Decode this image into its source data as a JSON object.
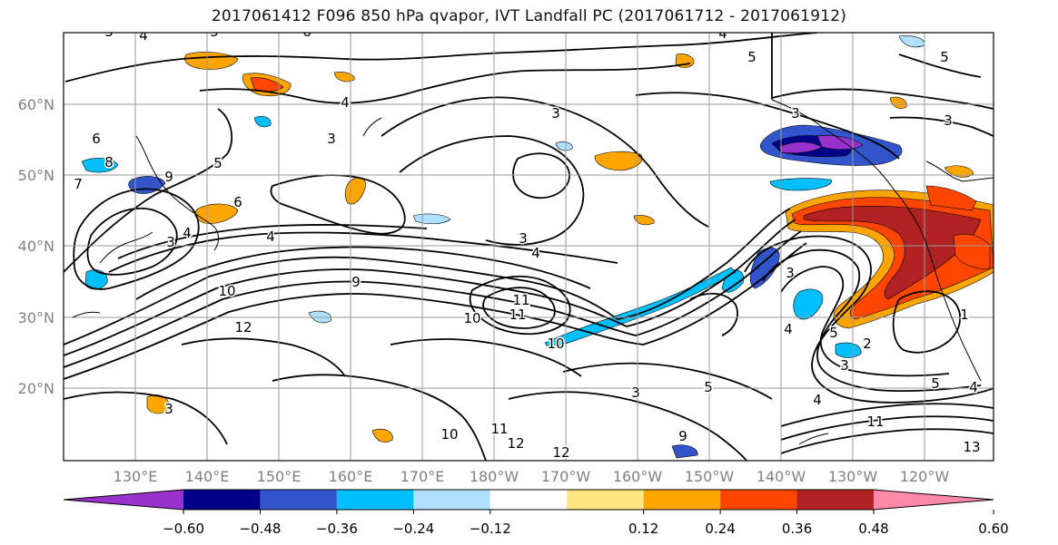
{
  "title": "2017061412 F096 850 hPa qvapor, IVT Landfall PC (2017061712 - 2017061912)",
  "lat_labels": [
    "60°N",
    "50°N",
    "40°N",
    "30°N",
    "20°N"
  ],
  "lon_labels": [
    "130°E",
    "140°E",
    "150°E",
    "160°E",
    "170°E",
    "180°W",
    "170°W",
    "160°W",
    "150°W",
    "140°W",
    "130°W",
    "120°W"
  ],
  "colorbar": {
    "colors": [
      "#9932cc",
      "#00008b",
      "#3355cc",
      "#00bfff",
      "#b0e0ff",
      "#ffffff",
      "#ffe680",
      "#ffa500",
      "#ff4500",
      "#b22222",
      "#ff88aa"
    ],
    "tick_labels": [
      "−0.60",
      "−0.48",
      "−0.36",
      "−0.24",
      "−0.12",
      "0.12",
      "0.24",
      "0.36",
      "0.48",
      "0.60"
    ]
  },
  "contour_labels": [
    "3",
    "4",
    "5",
    "6",
    "7",
    "8",
    "9",
    "10",
    "11",
    "12",
    "13",
    "2",
    "1"
  ],
  "colors": {
    "grid": "#999999",
    "axis_text": "#808080",
    "contour": "#000000"
  }
}
